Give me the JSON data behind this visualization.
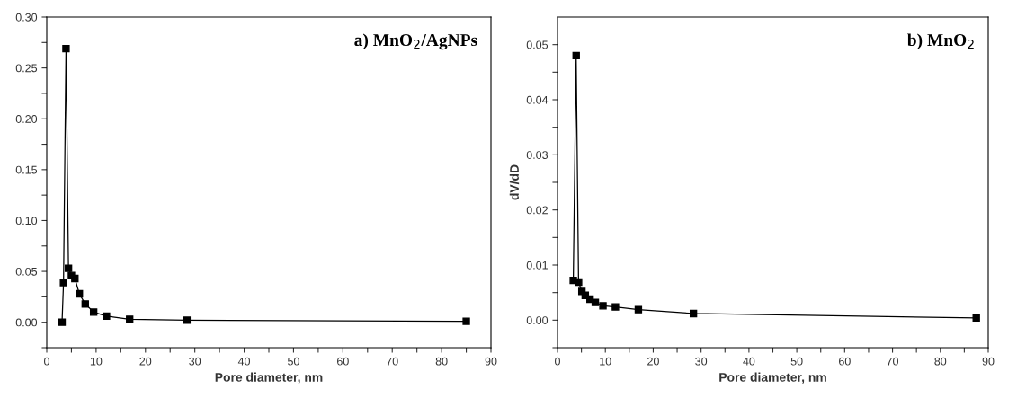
{
  "chart_data": [
    {
      "type": "line",
      "xlabel": "Pore diameter, nm",
      "annotations": [
        "a) MnO$_{2}$/AgNPs"
      ],
      "marker": "square",
      "line_style": "solid",
      "grid": false,
      "legend": false,
      "tick_labels": "xy",
      "series": [
        {
          "color": "#000000",
          "x": [
            3.1,
            3.4,
            3.9,
            4.4,
            5.0,
            5.7,
            6.6,
            7.8,
            9.5,
            12.1,
            16.8,
            28.4,
            85
          ],
          "values": [
            0.0,
            0.039,
            0.269,
            0.053,
            0.046,
            0.043,
            0.028,
            0.018,
            0.01,
            0.006,
            0.003,
            0.002,
            0.001
          ]
        }
      ],
      "xlim": [
        0,
        90
      ],
      "xticks": [
        0,
        {
          "value": 5,
          "label": null
        },
        10,
        {
          "value": 15,
          "label": null
        },
        20,
        {
          "value": 25,
          "label": null
        },
        30,
        {
          "value": 35,
          "label": null
        },
        40,
        {
          "value": 45,
          "label": null
        },
        50,
        {
          "value": 55,
          "label": null
        },
        60,
        {
          "value": 65,
          "label": null
        },
        70,
        {
          "value": 75,
          "label": null
        },
        80,
        {
          "value": 85,
          "label": null
        },
        90
      ],
      "ylim": [
        -0.025,
        0.3
      ],
      "yticks": [
        {
          "value": -0.025,
          "label": null
        },
        {
          "value": 0,
          "label": "0.00"
        },
        {
          "value": 0.025,
          "label": null
        },
        {
          "value": 0.05,
          "label": "0.05"
        },
        {
          "value": 0.075,
          "label": null
        },
        {
          "value": 0.1,
          "label": "0.10"
        },
        {
          "value": 0.125,
          "label": null
        },
        {
          "value": 0.15,
          "label": "0.15"
        },
        {
          "value": 0.175,
          "label": null
        },
        {
          "value": 0.2,
          "label": "0.20"
        },
        {
          "value": 0.225,
          "label": null
        },
        {
          "value": 0.25,
          "label": "0.25"
        },
        {
          "value": 0.275,
          "label": null
        },
        {
          "value": 0.3,
          "label": "0.30"
        }
      ]
    },
    {
      "type": "line",
      "xlabel": "Pore diameter, nm",
      "ylabel": "dV/dD",
      "annotations": [
        "b) MnO$_{2}$"
      ],
      "marker": "square",
      "line_style": "solid",
      "grid": false,
      "legend": false,
      "series": [
        {
          "color": "#000000",
          "x": [
            3.3,
            3.9,
            4.4,
            5.1,
            5.8,
            6.8,
            7.9,
            9.5,
            12.1,
            16.9,
            28.4,
            87.5
          ],
          "values": [
            0.0072,
            0.048,
            0.0069,
            0.0052,
            0.0045,
            0.0038,
            0.0032,
            0.0026,
            0.0024,
            0.0019,
            0.0012,
            0.0004
          ]
        }
      ],
      "xlim": [
        0,
        90
      ],
      "xticks": [
        0,
        {
          "value": 5,
          "label": null
        },
        10,
        {
          "value": 15,
          "label": null
        },
        20,
        {
          "value": 25,
          "label": null
        },
        30,
        {
          "value": 35,
          "label": null
        },
        40,
        {
          "value": 45,
          "label": null
        },
        50,
        {
          "value": 55,
          "label": null
        },
        60,
        {
          "value": 65,
          "label": null
        },
        70,
        {
          "value": 75,
          "label": null
        },
        80,
        {
          "value": 85,
          "label": null
        },
        90
      ],
      "ylim": [
        -0.005,
        0.055
      ],
      "yticks": [
        {
          "value": -0.005,
          "label": null
        },
        {
          "value": 0,
          "label": "0.00"
        },
        {
          "value": 0.005,
          "label": null
        },
        {
          "value": 0.01,
          "label": "0.01"
        },
        {
          "value": 0.015,
          "label": null
        },
        {
          "value": 0.02,
          "label": "0.02"
        },
        {
          "value": 0.025,
          "label": null
        },
        {
          "value": 0.03,
          "label": "0.03"
        },
        {
          "value": 0.035,
          "label": null
        },
        {
          "value": 0.04,
          "label": "0.04"
        },
        {
          "value": 0.045,
          "label": null
        },
        {
          "value": 0.05,
          "label": "0.05"
        }
      ]
    }
  ]
}
